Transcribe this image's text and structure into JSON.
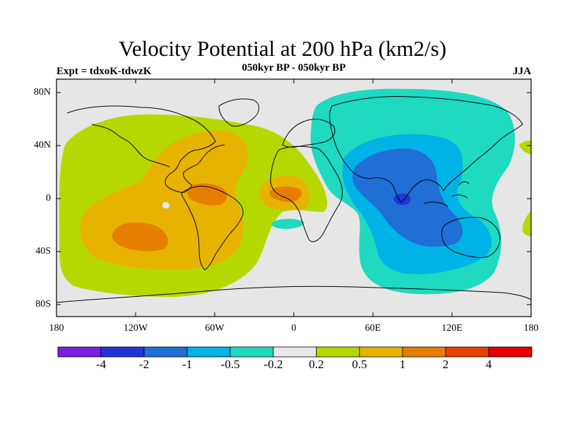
{
  "title": "Velocity Potential at 200 hPa (km2/s)",
  "subtitle": "050kyr BP - 050kyr BP",
  "left_label": "Expt = tdxoK-tdwzK",
  "right_label": "JJA",
  "lat_labels": [
    "80N",
    "40N",
    "0",
    "40S",
    "80S"
  ],
  "lon_labels": [
    "180",
    "120W",
    "60W",
    "0",
    "60E",
    "120E",
    "180"
  ],
  "colorbar": {
    "colors": [
      "#7a1fe0",
      "#2233d8",
      "#1f6fd6",
      "#00b3e6",
      "#1fd9c0",
      "#e8e8e8",
      "#b5d900",
      "#e6b400",
      "#e67f00",
      "#e64000",
      "#e60000"
    ],
    "labels": [
      "-4",
      "-2",
      "-1",
      "-0.5",
      "-0.2",
      "0.2",
      "0.5",
      "1",
      "2",
      "4"
    ]
  },
  "colors": {
    "background": "#e6e6e6",
    "land_outline": "#000000"
  }
}
